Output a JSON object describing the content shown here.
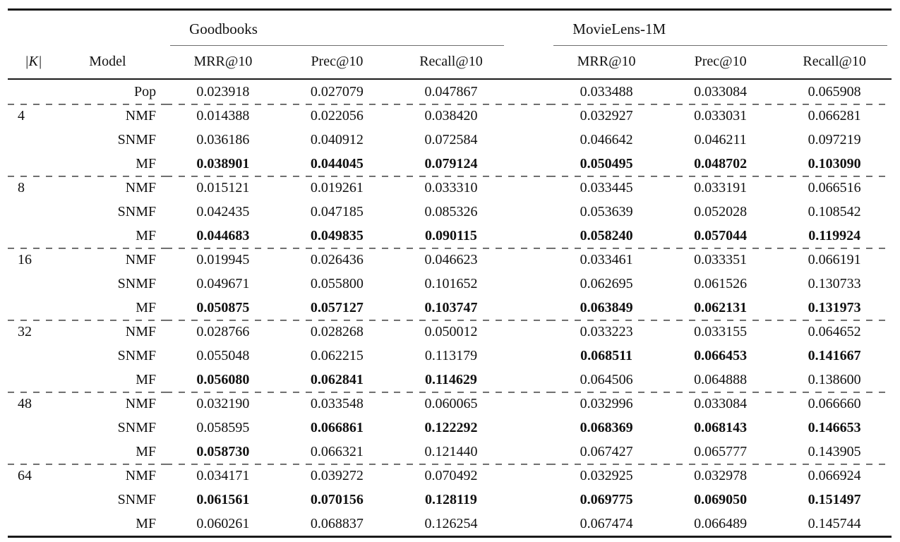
{
  "table": {
    "k_header": "|K|",
    "model_header": "Model",
    "dataset_headers": [
      "Goodbooks",
      "MovieLens-1M"
    ],
    "metric_headers": [
      "MRR@10",
      "Prec@10",
      "Recall@10"
    ],
    "rows": [
      {
        "k": "",
        "model": "Pop",
        "values": [
          "0.023918",
          "0.027079",
          "0.047867",
          "0.033488",
          "0.033084",
          "0.065908"
        ],
        "bold": [
          false,
          false,
          false,
          false,
          false,
          false
        ],
        "dashed_top": false
      },
      {
        "k": "4",
        "model": "NMF",
        "values": [
          "0.014388",
          "0.022056",
          "0.038420",
          "0.032927",
          "0.033031",
          "0.066281"
        ],
        "bold": [
          false,
          false,
          false,
          false,
          false,
          false
        ],
        "dashed_top": true
      },
      {
        "k": "",
        "model": "SNMF",
        "values": [
          "0.036186",
          "0.040912",
          "0.072584",
          "0.046642",
          "0.046211",
          "0.097219"
        ],
        "bold": [
          false,
          false,
          false,
          false,
          false,
          false
        ],
        "dashed_top": false
      },
      {
        "k": "",
        "model": "MF",
        "values": [
          "0.038901",
          "0.044045",
          "0.079124",
          "0.050495",
          "0.048702",
          "0.103090"
        ],
        "bold": [
          true,
          true,
          true,
          true,
          true,
          true
        ],
        "dashed_top": false
      },
      {
        "k": "8",
        "model": "NMF",
        "values": [
          "0.015121",
          "0.019261",
          "0.033310",
          "0.033445",
          "0.033191",
          "0.066516"
        ],
        "bold": [
          false,
          false,
          false,
          false,
          false,
          false
        ],
        "dashed_top": true
      },
      {
        "k": "",
        "model": "SNMF",
        "values": [
          "0.042435",
          "0.047185",
          "0.085326",
          "0.053639",
          "0.052028",
          "0.108542"
        ],
        "bold": [
          false,
          false,
          false,
          false,
          false,
          false
        ],
        "dashed_top": false
      },
      {
        "k": "",
        "model": "MF",
        "values": [
          "0.044683",
          "0.049835",
          "0.090115",
          "0.058240",
          "0.057044",
          "0.119924"
        ],
        "bold": [
          true,
          true,
          true,
          true,
          true,
          true
        ],
        "dashed_top": false
      },
      {
        "k": "16",
        "model": "NMF",
        "values": [
          "0.019945",
          "0.026436",
          "0.046623",
          "0.033461",
          "0.033351",
          "0.066191"
        ],
        "bold": [
          false,
          false,
          false,
          false,
          false,
          false
        ],
        "dashed_top": true
      },
      {
        "k": "",
        "model": "SNMF",
        "values": [
          "0.049671",
          "0.055800",
          "0.101652",
          "0.062695",
          "0.061526",
          "0.130733"
        ],
        "bold": [
          false,
          false,
          false,
          false,
          false,
          false
        ],
        "dashed_top": false
      },
      {
        "k": "",
        "model": "MF",
        "values": [
          "0.050875",
          "0.057127",
          "0.103747",
          "0.063849",
          "0.062131",
          "0.131973"
        ],
        "bold": [
          true,
          true,
          true,
          true,
          true,
          true
        ],
        "dashed_top": false
      },
      {
        "k": "32",
        "model": "NMF",
        "values": [
          "0.028766",
          "0.028268",
          "0.050012",
          "0.033223",
          "0.033155",
          "0.064652"
        ],
        "bold": [
          false,
          false,
          false,
          false,
          false,
          false
        ],
        "dashed_top": true
      },
      {
        "k": "",
        "model": "SNMF",
        "values": [
          "0.055048",
          "0.062215",
          "0.113179",
          "0.068511",
          "0.066453",
          "0.141667"
        ],
        "bold": [
          false,
          false,
          false,
          true,
          true,
          true
        ],
        "dashed_top": false
      },
      {
        "k": "",
        "model": "MF",
        "values": [
          "0.056080",
          "0.062841",
          "0.114629",
          "0.064506",
          "0.064888",
          "0.138600"
        ],
        "bold": [
          true,
          true,
          true,
          false,
          false,
          false
        ],
        "dashed_top": false
      },
      {
        "k": "48",
        "model": "NMF",
        "values": [
          "0.032190",
          "0.033548",
          "0.060065",
          "0.032996",
          "0.033084",
          "0.066660"
        ],
        "bold": [
          false,
          false,
          false,
          false,
          false,
          false
        ],
        "dashed_top": true
      },
      {
        "k": "",
        "model": "SNMF",
        "values": [
          "0.058595",
          "0.066861",
          "0.122292",
          "0.068369",
          "0.068143",
          "0.146653"
        ],
        "bold": [
          false,
          true,
          true,
          true,
          true,
          true
        ],
        "dashed_top": false
      },
      {
        "k": "",
        "model": "MF",
        "values": [
          "0.058730",
          "0.066321",
          "0.121440",
          "0.067427",
          "0.065777",
          "0.143905"
        ],
        "bold": [
          true,
          false,
          false,
          false,
          false,
          false
        ],
        "dashed_top": false
      },
      {
        "k": "64",
        "model": "NMF",
        "values": [
          "0.034171",
          "0.039272",
          "0.070492",
          "0.032925",
          "0.032978",
          "0.066924"
        ],
        "bold": [
          false,
          false,
          false,
          false,
          false,
          false
        ],
        "dashed_top": true
      },
      {
        "k": "",
        "model": "SNMF",
        "values": [
          "0.061561",
          "0.070156",
          "0.128119",
          "0.069775",
          "0.069050",
          "0.151497"
        ],
        "bold": [
          true,
          true,
          true,
          true,
          true,
          true
        ],
        "dashed_top": false
      },
      {
        "k": "",
        "model": "MF",
        "values": [
          "0.060261",
          "0.068837",
          "0.126254",
          "0.067474",
          "0.066489",
          "0.145744"
        ],
        "bold": [
          false,
          false,
          false,
          false,
          false,
          false
        ],
        "dashed_top": false
      }
    ]
  }
}
